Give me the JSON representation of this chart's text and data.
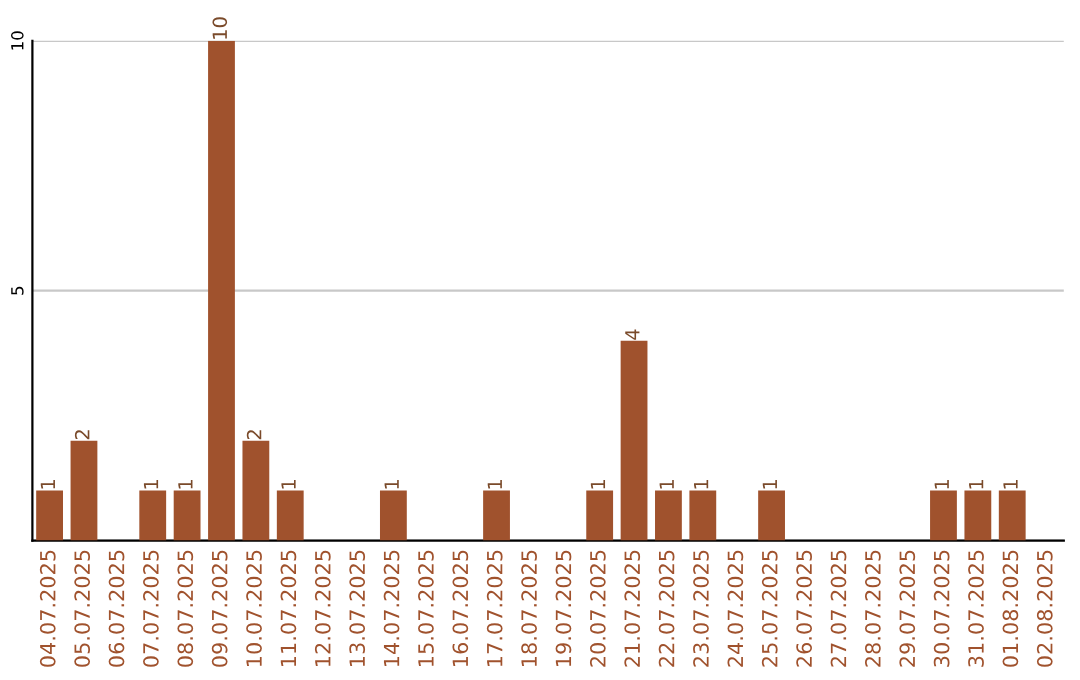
{
  "chart_data": {
    "type": "bar",
    "categories": [
      "04.07.2025",
      "05.07.2025",
      "06.07.2025",
      "07.07.2025",
      "08.07.2025",
      "09.07.2025",
      "10.07.2025",
      "11.07.2025",
      "12.07.2025",
      "13.07.2025",
      "14.07.2025",
      "15.07.2025",
      "16.07.2025",
      "17.07.2025",
      "18.07.2025",
      "19.07.2025",
      "20.07.2025",
      "21.07.2025",
      "22.07.2025",
      "23.07.2025",
      "24.07.2025",
      "25.07.2025",
      "26.07.2025",
      "27.07.2025",
      "28.07.2025",
      "29.07.2025",
      "30.07.2025",
      "31.07.2025",
      "01.08.2025",
      "02.08.2025"
    ],
    "values": [
      1,
      2,
      0,
      1,
      1,
      10,
      2,
      1,
      0,
      0,
      1,
      0,
      0,
      1,
      0,
      0,
      1,
      4,
      1,
      1,
      0,
      1,
      0,
      0,
      0,
      0,
      1,
      1,
      1,
      0
    ],
    "value_labels": [
      "1",
      "2",
      null,
      "1",
      "1",
      "10",
      "2",
      "1",
      null,
      null,
      "1",
      null,
      null,
      "1",
      null,
      null,
      "1",
      "4",
      "1",
      "1",
      null,
      "1",
      null,
      null,
      null,
      null,
      "1",
      "1",
      "1",
      null
    ],
    "color": "#a0522d",
    "ylim": [
      0,
      10
    ],
    "yticks": [
      {
        "value": 0,
        "label": null
      },
      5,
      10
    ],
    "grid": "y"
  }
}
